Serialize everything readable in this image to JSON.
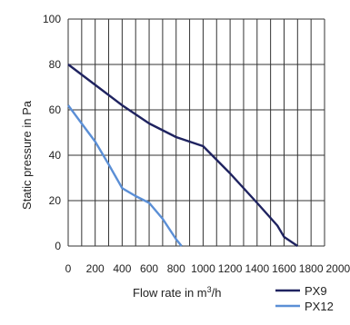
{
  "chart_data": {
    "type": "line",
    "xlabel_prefix": "Flow rate in m",
    "xlabel_sup": "3",
    "xlabel_suffix": "/h",
    "ylabel": "Static pressure in Pa",
    "xlim": [
      0,
      1900
    ],
    "ylim": [
      0,
      100
    ],
    "xticks": [
      0,
      200,
      400,
      600,
      800,
      1000,
      1200,
      1400,
      1600,
      1800,
      2000
    ],
    "yticks": [
      0,
      20,
      40,
      60,
      80,
      100
    ],
    "grid": true,
    "legend_position": "bottom-right",
    "series": [
      {
        "name": "PX9",
        "color": "#1f2360",
        "x": [
          0,
          200,
          400,
          600,
          800,
          1000,
          1200,
          1400,
          1550,
          1600,
          1700
        ],
        "y": [
          80,
          71,
          62,
          54,
          48,
          44,
          32,
          19,
          9,
          4,
          0
        ]
      },
      {
        "name": "PX12",
        "color": "#5b8fd6",
        "x": [
          0,
          100,
          200,
          300,
          400,
          500,
          600,
          700,
          800,
          840
        ],
        "y": [
          62,
          54,
          46,
          36,
          25.5,
          22,
          19,
          12,
          3,
          0
        ]
      }
    ]
  }
}
